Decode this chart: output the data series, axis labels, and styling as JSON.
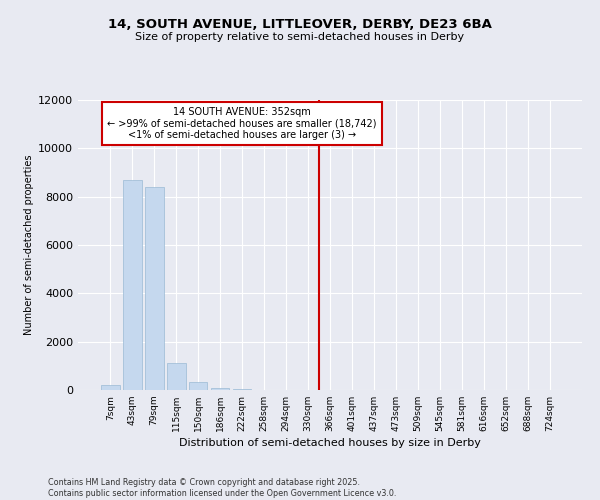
{
  "title_line1": "14, SOUTH AVENUE, LITTLEOVER, DERBY, DE23 6BA",
  "title_line2": "Size of property relative to semi-detached houses in Derby",
  "xlabel": "Distribution of semi-detached houses by size in Derby",
  "ylabel": "Number of semi-detached properties",
  "categories": [
    "7sqm",
    "43sqm",
    "79sqm",
    "115sqm",
    "150sqm",
    "186sqm",
    "222sqm",
    "258sqm",
    "294sqm",
    "330sqm",
    "366sqm",
    "401sqm",
    "437sqm",
    "473sqm",
    "509sqm",
    "545sqm",
    "581sqm",
    "616sqm",
    "652sqm",
    "688sqm",
    "724sqm"
  ],
  "values": [
    200,
    8700,
    8400,
    1100,
    330,
    100,
    60,
    0,
    0,
    0,
    0,
    0,
    0,
    0,
    0,
    0,
    0,
    0,
    0,
    0,
    0
  ],
  "bar_color": "#c5d8ee",
  "bar_edgecolor": "#9bbad4",
  "vline_x": 10,
  "vline_color": "#cc0000",
  "annotation_title": "14 SOUTH AVENUE: 352sqm",
  "annotation_line2": "← >99% of semi-detached houses are smaller (18,742)",
  "annotation_line3": "<1% of semi-detached houses are larger (3) →",
  "annotation_box_color": "#cc0000",
  "ylim": [
    0,
    12000
  ],
  "yticks": [
    0,
    2000,
    4000,
    6000,
    8000,
    10000,
    12000
  ],
  "background_color": "#e8eaf2",
  "grid_color": "#ffffff",
  "footer_line1": "Contains HM Land Registry data © Crown copyright and database right 2025.",
  "footer_line2": "Contains public sector information licensed under the Open Government Licence v3.0."
}
